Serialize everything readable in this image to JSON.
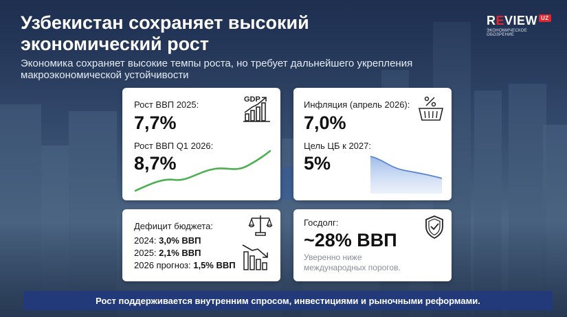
{
  "header": {
    "title_line1": "Узбекистан сохраняет высокий",
    "title_line2": "экономический рост",
    "subtitle_line1": "Экономика сохраняет высокие темпы роста, но требует дальнейшего укрепления",
    "subtitle_line2": "макроэкономической устойчивости"
  },
  "logo": {
    "prefix": "R",
    "accent": "E",
    "suffix": "VIEW",
    "badge": "UZ",
    "tagline": "ЭКОНОМИЧЕСКОЕ ОБОЗРЕНИЕ"
  },
  "gdp_card": {
    "label_2025": "Рост ВВП 2025:",
    "value_2025": "7,7%",
    "label_q1": "Рост ВВП Q1 2026:",
    "value_q1": "8,7%",
    "icon_text": "GDP",
    "icon": "gdp-growth-chart-icon",
    "trend_color": "#4caf50"
  },
  "inflation_card": {
    "label": "Инфляция (апрель 2026):",
    "value": "7,0%",
    "target_label": "Цель ЦБ к 2027:",
    "target_value": "5%",
    "icon": "shopping-basket-percent-icon",
    "trend_color": "#6f96d6"
  },
  "budget_card": {
    "label": "Дефицит бюджета:",
    "rows": [
      {
        "prefix": "2024: ",
        "value": "3,0% ВВП"
      },
      {
        "prefix": "2025: ",
        "value": "2,1% ВВП"
      },
      {
        "prefix": "2026 прогноз: ",
        "value": "1,5% ВВП"
      }
    ],
    "icon_scales": "scales-icon",
    "icon_decline": "declining-bars-icon"
  },
  "debt_card": {
    "label": "Госдолг:",
    "value": "~28% ВВП",
    "note_line1": "Уверенно ниже",
    "note_line2": "международных порогов.",
    "icon": "shield-check-icon"
  },
  "footer": {
    "text": "Рост поддерживается внутренним спросом, инвестициями и рыночными реформами."
  }
}
